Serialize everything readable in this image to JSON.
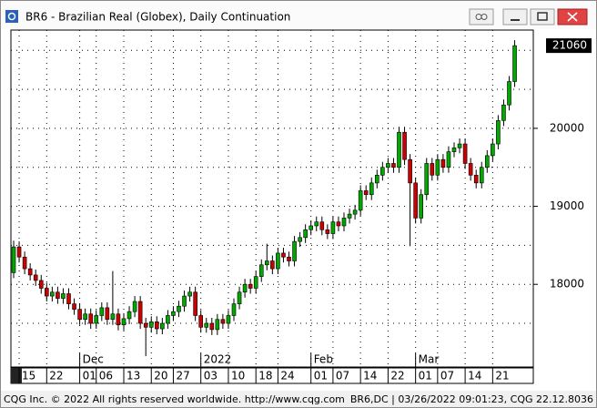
{
  "window": {
    "title": "BR6 - Brazilian Real (Globex), Daily Continuation"
  },
  "chart_data": {
    "type": "candlestick",
    "categories": [
      null,
      "15",
      null,
      null,
      null,
      null,
      "22",
      null,
      null,
      null,
      null,
      null,
      "01",
      null,
      null,
      "06",
      null,
      null,
      null,
      null,
      "13",
      null,
      null,
      null,
      null,
      "20",
      null,
      null,
      null,
      "27",
      null,
      null,
      null,
      null,
      "03",
      null,
      null,
      null,
      null,
      "10",
      null,
      null,
      null,
      null,
      "18",
      null,
      null,
      null,
      "24",
      null,
      null,
      null,
      null,
      null,
      "01",
      null,
      null,
      null,
      "07",
      null,
      null,
      null,
      null,
      "14",
      null,
      null,
      null,
      null,
      "22",
      null,
      null,
      null,
      null,
      "01",
      null,
      null,
      null,
      "07",
      null,
      null,
      null,
      null,
      "14",
      null,
      null,
      null,
      null,
      "21",
      null,
      null,
      null,
      null
    ],
    "months": [
      null,
      null,
      null,
      null,
      null,
      null,
      null,
      null,
      null,
      null,
      null,
      null,
      "Dec",
      null,
      null,
      null,
      null,
      null,
      null,
      null,
      null,
      null,
      null,
      null,
      null,
      null,
      null,
      null,
      null,
      null,
      null,
      null,
      null,
      null,
      "2022",
      null,
      null,
      null,
      null,
      null,
      null,
      null,
      null,
      null,
      null,
      null,
      null,
      null,
      null,
      null,
      null,
      null,
      null,
      null,
      "Feb",
      null,
      null,
      null,
      null,
      null,
      null,
      null,
      null,
      null,
      null,
      null,
      null,
      null,
      null,
      null,
      null,
      null,
      null,
      "Mar",
      null,
      null,
      null,
      null,
      null,
      null,
      null,
      null,
      null,
      null,
      null,
      null,
      null,
      null,
      null,
      null,
      null,
      null
    ],
    "open": [
      18150,
      18480,
      18350,
      18200,
      18120,
      18050,
      17950,
      17850,
      17900,
      17820,
      17880,
      17750,
      17680,
      17550,
      17620,
      17500,
      17600,
      17700,
      17550,
      17620,
      17480,
      17560,
      17650,
      17780,
      17500,
      17450,
      17520,
      17430,
      17500,
      17600,
      17650,
      17720,
      17850,
      17900,
      17600,
      17450,
      17500,
      17420,
      17550,
      17500,
      17600,
      17750,
      17900,
      18000,
      17950,
      18100,
      18250,
      18300,
      18200,
      18400,
      18350,
      18300,
      18550,
      18600,
      18700,
      18750,
      18800,
      18700,
      18650,
      18800,
      18750,
      18850,
      18900,
      18950,
      19200,
      19150,
      19300,
      19400,
      19500,
      19550,
      19500,
      19950,
      19600,
      19300,
      18850,
      19150,
      19550,
      19400,
      19600,
      19500,
      19700,
      19750,
      19800,
      19550,
      19400,
      19300,
      19500,
      19650,
      19800,
      20100,
      20300,
      20600
    ],
    "high": [
      18560,
      18550,
      18420,
      18270,
      18190,
      18120,
      18020,
      17970,
      17970,
      17950,
      17950,
      17820,
      17750,
      17690,
      17690,
      17670,
      17770,
      17770,
      18170,
      17690,
      17630,
      17720,
      17850,
      17850,
      17570,
      17590,
      17590,
      17570,
      17670,
      17720,
      17790,
      17920,
      17970,
      17970,
      17670,
      17570,
      17570,
      17620,
      17620,
      17670,
      17820,
      17970,
      18070,
      18070,
      18170,
      18320,
      18520,
      18370,
      18470,
      18470,
      18420,
      18620,
      18670,
      18770,
      18820,
      18870,
      18870,
      18770,
      18870,
      18870,
      18920,
      18970,
      19020,
      19270,
      19270,
      19370,
      19470,
      19570,
      19620,
      19620,
      20020,
      20020,
      19670,
      19370,
      19220,
      19620,
      19620,
      19670,
      19670,
      19770,
      19820,
      19870,
      19870,
      19620,
      19470,
      19570,
      19720,
      19870,
      20170,
      20370,
      20670,
      21130
    ],
    "low": [
      18080,
      18280,
      18130,
      18050,
      17980,
      17880,
      17780,
      17780,
      17750,
      17750,
      17680,
      17610,
      17480,
      17480,
      17430,
      17430,
      17530,
      17480,
      17480,
      17410,
      17410,
      17490,
      17580,
      17430,
      17080,
      17380,
      17360,
      17360,
      17430,
      17530,
      17580,
      17650,
      17780,
      17530,
      17380,
      17380,
      17350,
      17350,
      17430,
      17430,
      17530,
      17680,
      17830,
      17880,
      17880,
      18030,
      18180,
      18130,
      18130,
      18280,
      18230,
      18230,
      18480,
      18530,
      18630,
      18680,
      18630,
      18580,
      18580,
      18680,
      18680,
      18780,
      18830,
      18880,
      19080,
      19080,
      19230,
      19330,
      19430,
      19430,
      19430,
      19530,
      18490,
      18780,
      18780,
      19080,
      19330,
      19330,
      19430,
      19430,
      19630,
      19680,
      19480,
      19330,
      19230,
      19230,
      19430,
      19580,
      19730,
      20030,
      20230,
      20530
    ],
    "close": [
      18480,
      18350,
      18200,
      18120,
      18050,
      17950,
      17850,
      17900,
      17820,
      17880,
      17750,
      17680,
      17550,
      17620,
      17500,
      17600,
      17700,
      17550,
      17620,
      17480,
      17560,
      17650,
      17780,
      17500,
      17450,
      17520,
      17430,
      17500,
      17600,
      17650,
      17720,
      17850,
      17900,
      17600,
      17450,
      17500,
      17420,
      17550,
      17500,
      17600,
      17750,
      17900,
      18000,
      17950,
      18100,
      18250,
      18300,
      18200,
      18400,
      18350,
      18300,
      18550,
      18600,
      18700,
      18750,
      18800,
      18700,
      18650,
      18800,
      18750,
      18850,
      18900,
      18950,
      19200,
      19150,
      19300,
      19400,
      19500,
      19550,
      19500,
      19950,
      19600,
      19300,
      18850,
      19150,
      19550,
      19400,
      19600,
      19500,
      19700,
      19750,
      19800,
      19550,
      19400,
      19300,
      19500,
      19650,
      19800,
      20100,
      20300,
      20600,
      21060
    ],
    "up_color": "#00a800",
    "down_color": "#cc0000",
    "ylim": [
      16940,
      21260
    ],
    "yticks": [
      18000,
      19000,
      20000
    ],
    "ygrid": [
      17500,
      18500,
      19500,
      20500,
      21000
    ],
    "grid": true
  },
  "status_bar": {
    "left": "CQG Inc. © 2022 All rights reserved worldwide. http://www.cqg.com",
    "right": "BR6,DC | 03/26/2022 09:01:23, CQG 22.12.8036"
  }
}
